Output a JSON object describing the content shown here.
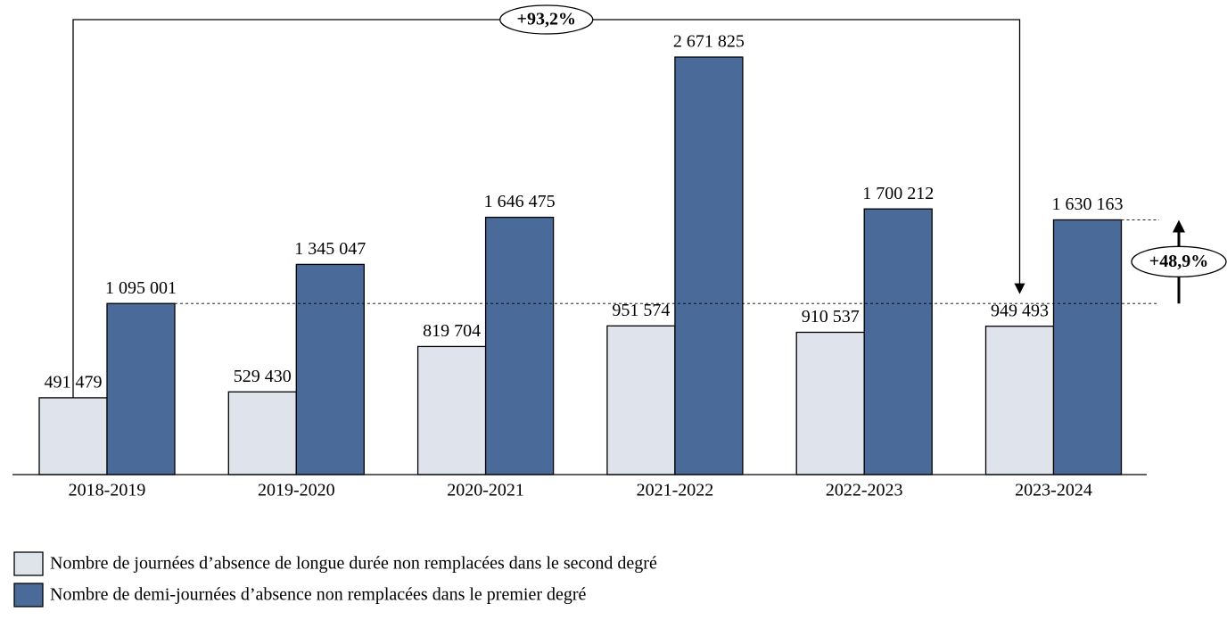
{
  "chart_data": {
    "type": "bar",
    "categories": [
      "2018-2019",
      "2019-2020",
      "2020-2021",
      "2021-2022",
      "2022-2023",
      "2023-2024"
    ],
    "series": [
      {
        "name": "Nombre de journées d’absence de longue durée non remplacées dans le second degré",
        "color": "#dfe3ec",
        "values": [
          491479,
          529430,
          819704,
          951574,
          910537,
          949493
        ],
        "value_labels": [
          "491 479",
          "529 430",
          "819 704",
          "951 574",
          "910 537",
          "949 493"
        ]
      },
      {
        "name": "Nombre de demi-journées d’absence non remplacées dans le premier degré",
        "color": "#4a6a9a",
        "values": [
          1095001,
          1345047,
          1646475,
          2671825,
          1700212,
          1630163
        ],
        "value_labels": [
          "1 095 001",
          "1 345 047",
          "1 646 475",
          "2 671 825",
          "1 700 212",
          "1 630 163"
        ]
      }
    ],
    "annotations": [
      "+93,2%",
      "+48,9%"
    ]
  }
}
